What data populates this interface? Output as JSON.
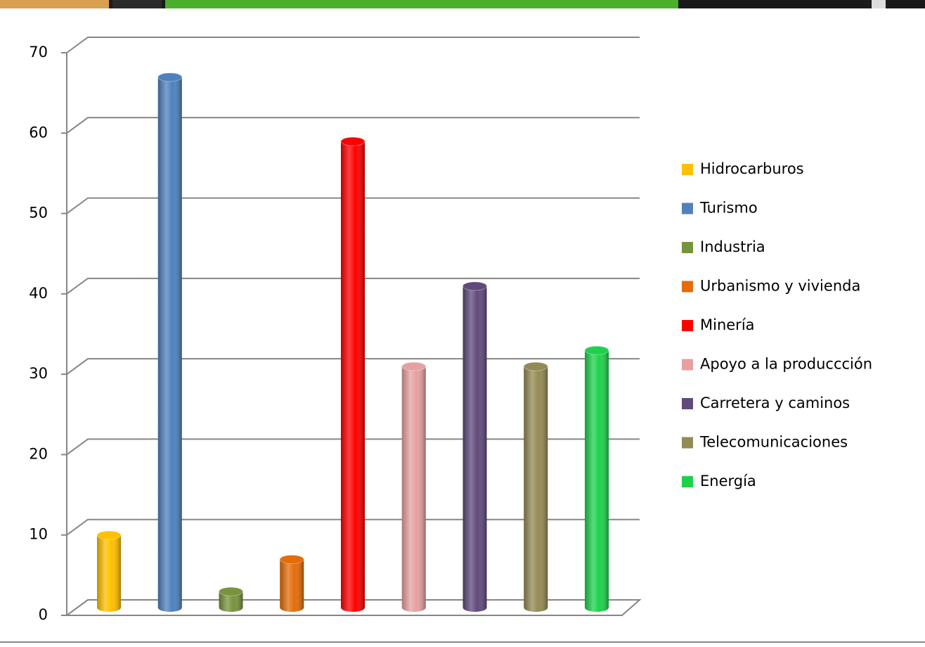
{
  "chart_data": {
    "type": "bar",
    "series": [
      {
        "name": "Hidrocarburos",
        "color": "#FFC000",
        "values": [
          9
        ]
      },
      {
        "name": "Turismo",
        "color": "#4F81BD",
        "values": [
          66
        ]
      },
      {
        "name": "Industria",
        "color": "#77933C",
        "values": [
          2
        ]
      },
      {
        "name": "Urbanismo  y vivienda",
        "color": "#E46C0A",
        "values": [
          6
        ]
      },
      {
        "name": "Minería",
        "color": "#FF0000",
        "values": [
          58
        ]
      },
      {
        "name": "Apoyo a la produccción",
        "color": "#E6A0A0",
        "values": [
          30
        ]
      },
      {
        "name": "Carretera y caminos",
        "color": "#604A7B",
        "values": [
          40
        ]
      },
      {
        "name": "Telecomunicaciones",
        "color": "#948A54",
        "values": [
          30
        ]
      },
      {
        "name": "Energía",
        "color": "#1ED14B",
        "values": [
          32
        ]
      }
    ],
    "ylim": [
      0,
      70
    ],
    "yticks": [
      0,
      10,
      20,
      30,
      40,
      50,
      60,
      70
    ],
    "grid": true,
    "legend": "right"
  }
}
